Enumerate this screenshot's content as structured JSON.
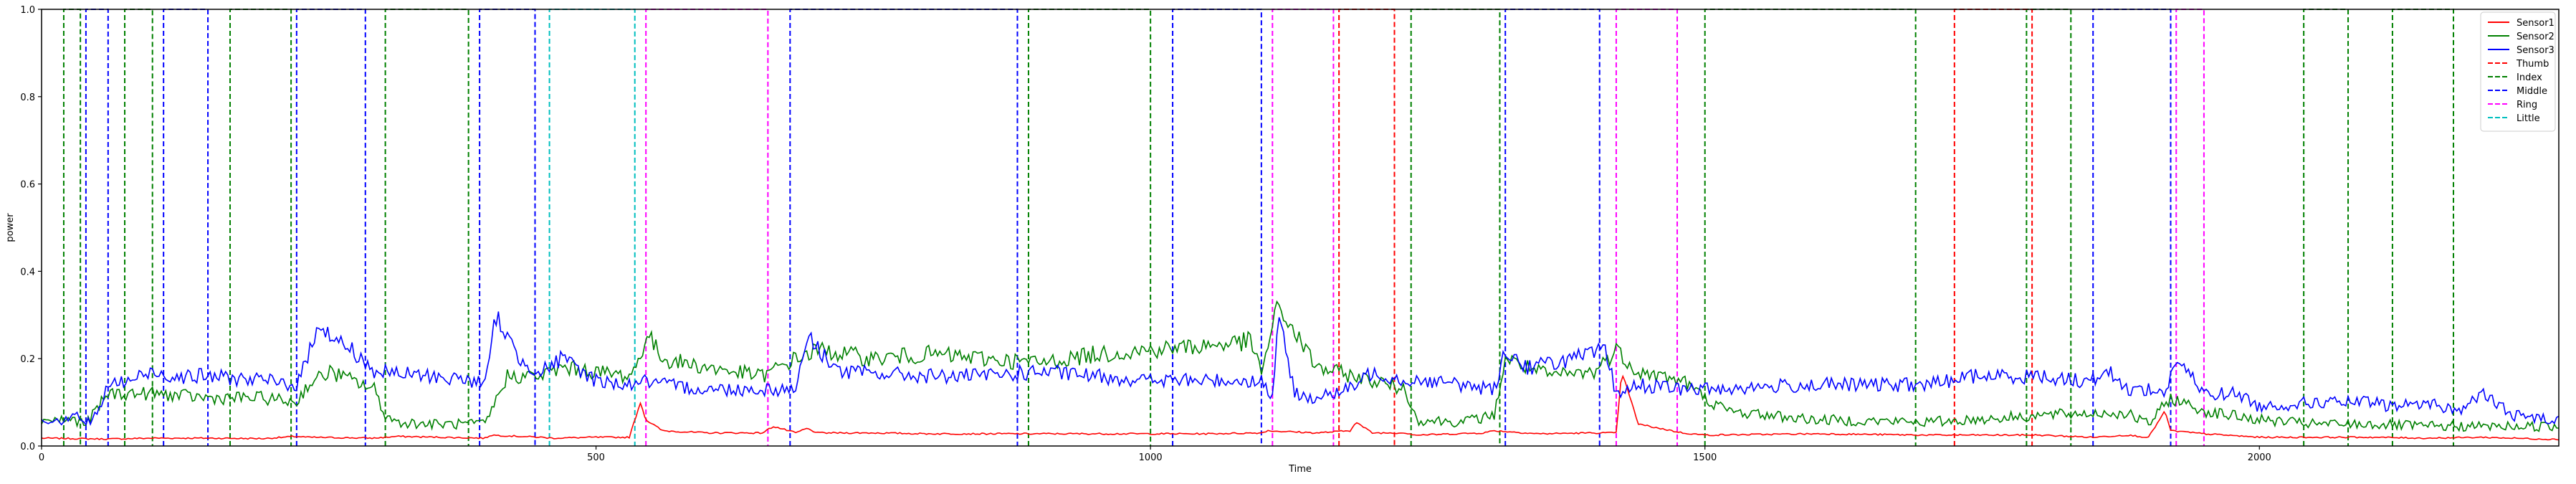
{
  "chart_data": {
    "type": "line",
    "title": "",
    "xlabel": "Time",
    "ylabel": "power",
    "xlim": [
      0,
      2270
    ],
    "ylim": [
      0,
      1.0
    ],
    "xticks": [
      0,
      500,
      1000,
      1500,
      2000
    ],
    "xtick_labels": [
      "0",
      "500",
      "1000",
      "1500",
      "2000"
    ],
    "yticks": [
      0,
      0.2,
      0.4,
      0.6,
      0.8,
      1.0
    ],
    "ytick_labels": [
      "0.0",
      "0.2",
      "0.4",
      "0.6",
      "0.8",
      "1.0"
    ],
    "grid": false,
    "legend_position": "top-right",
    "legend": [
      {
        "label": "Sensor1",
        "color": "#ff0000",
        "style": "solid"
      },
      {
        "label": "Sensor2",
        "color": "#008000",
        "style": "solid"
      },
      {
        "label": "Sensor3",
        "color": "#0000ff",
        "style": "solid"
      },
      {
        "label": "Thumb",
        "color": "#ff0000",
        "style": "dashed"
      },
      {
        "label": "Index",
        "color": "#008000",
        "style": "dashed"
      },
      {
        "label": "Middle",
        "color": "#0000ff",
        "style": "dashed"
      },
      {
        "label": "Ring",
        "color": "#ff00ff",
        "style": "dashed"
      },
      {
        "label": "Little",
        "color": "#00bfbf",
        "style": "dashed"
      }
    ],
    "sensor_series": [
      {
        "name": "Sensor1",
        "color": "#ff0000",
        "x": [
          0,
          30,
          60,
          100,
          150,
          200,
          230,
          240,
          300,
          320,
          400,
          405,
          450,
          460,
          500,
          530,
          540,
          545,
          560,
          600,
          650,
          660,
          680,
          690,
          700,
          750,
          800,
          850,
          900,
          950,
          1000,
          1050,
          1100,
          1105,
          1150,
          1180,
          1185,
          1200,
          1230,
          1240,
          1300,
          1310,
          1350,
          1400,
          1420,
          1425,
          1440,
          1480,
          1500,
          1600,
          1700,
          1740,
          1800,
          1850,
          1880,
          1900,
          1915,
          1920,
          1950,
          2000,
          2100,
          2150,
          2200,
          2270
        ],
        "y": [
          0.018,
          0.017,
          0.016,
          0.018,
          0.018,
          0.017,
          0.022,
          0.02,
          0.018,
          0.022,
          0.018,
          0.025,
          0.02,
          0.018,
          0.02,
          0.02,
          0.1,
          0.06,
          0.035,
          0.03,
          0.03,
          0.045,
          0.03,
          0.04,
          0.03,
          0.03,
          0.028,
          0.028,
          0.028,
          0.028,
          0.028,
          0.028,
          0.03,
          0.035,
          0.03,
          0.035,
          0.055,
          0.03,
          0.03,
          0.025,
          0.03,
          0.035,
          0.028,
          0.03,
          0.03,
          0.17,
          0.05,
          0.03,
          0.025,
          0.028,
          0.025,
          0.025,
          0.025,
          0.02,
          0.025,
          0.02,
          0.08,
          0.035,
          0.028,
          0.02,
          0.02,
          0.018,
          0.02,
          0.015
        ]
      },
      {
        "name": "Sensor2",
        "color": "#008000",
        "x": [
          0,
          30,
          40,
          60,
          100,
          150,
          200,
          230,
          240,
          260,
          280,
          300,
          310,
          320,
          350,
          400,
          420,
          450,
          470,
          500,
          530,
          540,
          545,
          560,
          600,
          650,
          680,
          700,
          750,
          800,
          850,
          900,
          950,
          1000,
          1050,
          1090,
          1100,
          1115,
          1150,
          1200,
          1230,
          1240,
          1280,
          1310,
          1320,
          1360,
          1400,
          1420,
          1440,
          1480,
          1500,
          1520,
          1600,
          1700,
          1740,
          1800,
          1850,
          1880,
          1900,
          1920,
          1950,
          2000,
          2050,
          2100,
          2150,
          2200,
          2270
        ],
        "y": [
          0.06,
          0.06,
          0.05,
          0.12,
          0.12,
          0.11,
          0.11,
          0.1,
          0.14,
          0.17,
          0.15,
          0.13,
          0.07,
          0.055,
          0.05,
          0.05,
          0.16,
          0.16,
          0.18,
          0.17,
          0.16,
          0.2,
          0.26,
          0.2,
          0.18,
          0.16,
          0.2,
          0.22,
          0.2,
          0.21,
          0.2,
          0.19,
          0.21,
          0.22,
          0.23,
          0.24,
          0.17,
          0.32,
          0.18,
          0.15,
          0.13,
          0.06,
          0.055,
          0.07,
          0.2,
          0.16,
          0.17,
          0.22,
          0.17,
          0.15,
          0.11,
          0.08,
          0.06,
          0.055,
          0.06,
          0.07,
          0.075,
          0.075,
          0.05,
          0.11,
          0.08,
          0.06,
          0.05,
          0.05,
          0.045,
          0.045,
          0.045
        ]
      },
      {
        "name": "Sensor3",
        "color": "#0000ff",
        "x": [
          0,
          20,
          30,
          40,
          50,
          60,
          80,
          100,
          120,
          150,
          200,
          230,
          240,
          250,
          260,
          280,
          300,
          350,
          390,
          400,
          410,
          430,
          450,
          470,
          500,
          530,
          540,
          560,
          600,
          650,
          680,
          690,
          720,
          800,
          850,
          900,
          950,
          1000,
          1050,
          1100,
          1110,
          1115,
          1130,
          1150,
          1180,
          1200,
          1230,
          1250,
          1280,
          1310,
          1320,
          1340,
          1360,
          1400,
          1410,
          1420,
          1440,
          1480,
          1500,
          1600,
          1700,
          1740,
          1800,
          1840,
          1850,
          1860,
          1880,
          1900,
          1915,
          1925,
          1950,
          1980,
          2000,
          2050,
          2100,
          2120,
          2150,
          2180,
          2200,
          2230,
          2270
        ],
        "y": [
          0.06,
          0.06,
          0.08,
          0.05,
          0.07,
          0.14,
          0.15,
          0.17,
          0.16,
          0.16,
          0.15,
          0.14,
          0.2,
          0.29,
          0.25,
          0.22,
          0.17,
          0.16,
          0.15,
          0.14,
          0.3,
          0.2,
          0.17,
          0.2,
          0.15,
          0.14,
          0.15,
          0.14,
          0.13,
          0.13,
          0.13,
          0.25,
          0.17,
          0.16,
          0.16,
          0.17,
          0.16,
          0.15,
          0.15,
          0.15,
          0.11,
          0.3,
          0.12,
          0.11,
          0.13,
          0.17,
          0.15,
          0.15,
          0.14,
          0.13,
          0.22,
          0.18,
          0.19,
          0.21,
          0.22,
          0.12,
          0.14,
          0.13,
          0.13,
          0.14,
          0.14,
          0.16,
          0.16,
          0.15,
          0.15,
          0.18,
          0.13,
          0.13,
          0.12,
          0.2,
          0.12,
          0.12,
          0.09,
          0.1,
          0.1,
          0.09,
          0.1,
          0.08,
          0.12,
          0.07,
          0.06
        ]
      }
    ],
    "finger_series": [
      {
        "name": "Index",
        "color": "#008000",
        "intervals": [
          [
            20,
            35
          ],
          [
            75,
            100
          ],
          [
            170,
            225
          ],
          [
            310,
            385
          ],
          [
            890,
            1000
          ],
          [
            1235,
            1315
          ],
          [
            1500,
            1690
          ],
          [
            1790,
            1830
          ],
          [
            2040,
            2080
          ],
          [
            2120,
            2175
          ]
        ]
      },
      {
        "name": "Middle",
        "color": "#0000ff",
        "intervals": [
          [
            40,
            60
          ],
          [
            110,
            150
          ],
          [
            230,
            292
          ],
          [
            395,
            445
          ],
          [
            675,
            880
          ],
          [
            1020,
            1100
          ],
          [
            1320,
            1405
          ],
          [
            1850,
            1920
          ]
        ]
      },
      {
        "name": "Little",
        "color": "#00bfbf",
        "intervals": [
          [
            458,
            535
          ]
        ]
      },
      {
        "name": "Ring",
        "color": "#ff00ff",
        "intervals": [
          [
            545,
            655
          ],
          [
            1110,
            1165
          ],
          [
            1420,
            1475
          ],
          [
            1925,
            1950
          ]
        ]
      },
      {
        "name": "Thumb",
        "color": "#ff0000",
        "intervals": [
          [
            1170,
            1220
          ],
          [
            1725,
            1795
          ]
        ]
      }
    ]
  }
}
